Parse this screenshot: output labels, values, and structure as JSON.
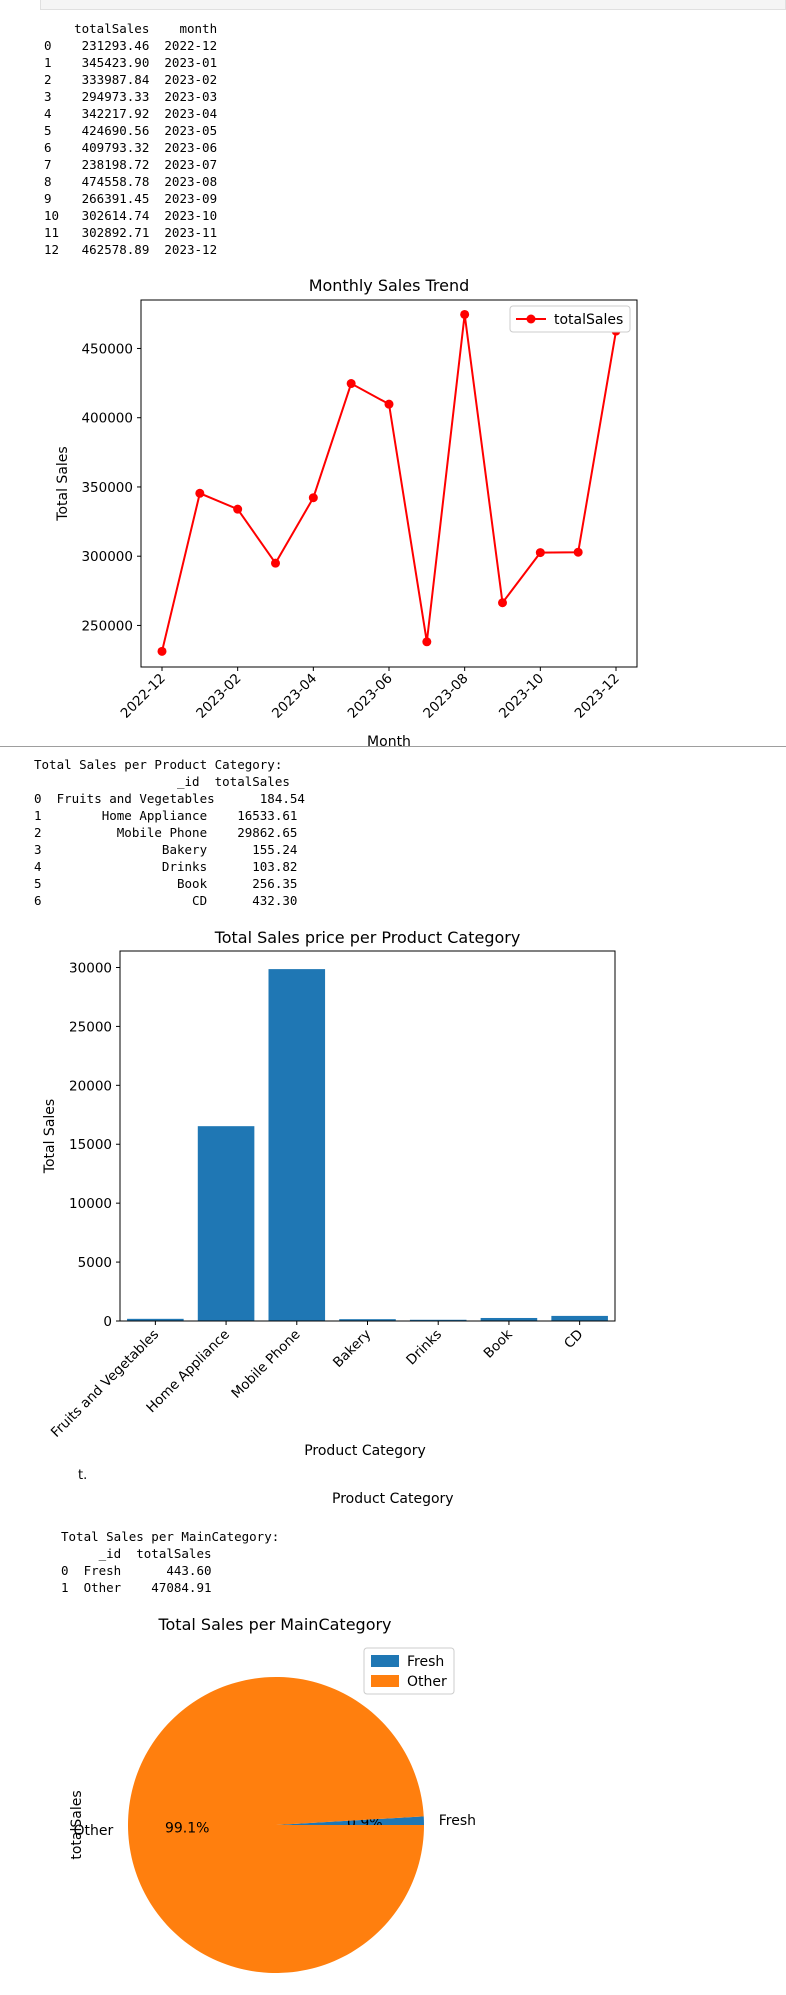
{
  "table_monthly": {
    "text": "    totalSales    month\n0    231293.46  2022-12\n1    345423.90  2023-01\n2    333987.84  2023-02\n3    294973.33  2023-03\n4    342217.92  2023-04\n5    424690.56  2023-05\n6    409793.32  2023-06\n7    238198.72  2023-07\n8    474558.78  2023-08\n9    266391.45  2023-09\n10   302614.74  2023-10\n11   302892.71  2023-11\n12   462578.89  2023-12"
  },
  "table_category": {
    "text": "Total Sales per Product Category:\n                   _id  totalSales\n0  Fruits and Vegetables      184.54\n1        Home Appliance    16533.61\n2          Mobile Phone    29862.65\n3                Bakery      155.24\n4                Drinks      103.82\n5                  Book      256.35\n6                    CD      432.30"
  },
  "table_main": {
    "text": "Total Sales per MainCategory:\n     _id  totalSales\n0  Fresh      443.60\n1  Other    47084.91"
  },
  "stray_text": {
    "fragment": "t.",
    "label": "Product Category"
  },
  "chart_data": [
    {
      "type": "line",
      "title": "Monthly Sales Trend",
      "xlabel": "Month",
      "ylabel": "Total Sales",
      "x": [
        "2022-12",
        "2023-01",
        "2023-02",
        "2023-03",
        "2023-04",
        "2023-05",
        "2023-06",
        "2023-07",
        "2023-08",
        "2023-09",
        "2023-10",
        "2023-11",
        "2023-12"
      ],
      "xticks": [
        "2022-12",
        "2023-02",
        "2023-04",
        "2023-06",
        "2023-08",
        "2023-10",
        "2023-12"
      ],
      "yticks": [
        250000,
        300000,
        350000,
        400000,
        450000
      ],
      "ylim": [
        220000,
        485000
      ],
      "series": [
        {
          "name": "totalSales",
          "color": "#ff0000",
          "marker": "circle",
          "values": [
            231293.46,
            345423.9,
            333987.84,
            294973.33,
            342217.92,
            424690.56,
            409793.32,
            238198.72,
            474558.78,
            266391.45,
            302614.74,
            302892.71,
            462578.89
          ]
        }
      ],
      "legend": "top-right",
      "grid": false
    },
    {
      "type": "bar",
      "title": "Total Sales price per Product Category",
      "xlabel": "Product Category",
      "ylabel": "Total Sales",
      "categories": [
        "Fruits and Vegetables",
        "Home Appliance",
        "Mobile Phone",
        "Bakery",
        "Drinks",
        "Book",
        "CD"
      ],
      "values": [
        184.54,
        16533.61,
        29862.65,
        155.24,
        103.82,
        256.35,
        432.3
      ],
      "yticks": [
        0,
        5000,
        10000,
        15000,
        20000,
        25000,
        30000
      ],
      "ylim": [
        0,
        31400
      ],
      "color": "#1f77b4",
      "grid": false
    },
    {
      "type": "pie",
      "title": "Total Sales per MainCategory",
      "ylabel": "totalSales",
      "labels": [
        "Fresh",
        "Other"
      ],
      "values": [
        443.6,
        47084.91
      ],
      "percent_labels": [
        "0.9%",
        "99.1%"
      ],
      "colors": [
        "#1f77b4",
        "#ff7f0e"
      ],
      "legend": "top-right"
    }
  ]
}
